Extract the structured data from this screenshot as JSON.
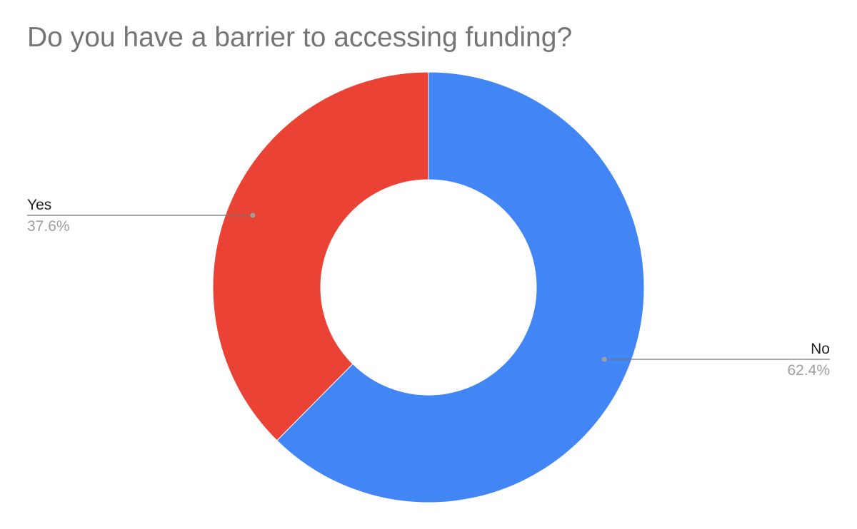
{
  "chart_data": {
    "type": "pie",
    "title": "Do you have a barrier to accessing funding?",
    "donut": true,
    "start_angle": "top, clockwise",
    "slices": [
      {
        "label": "No",
        "value": 62.4,
        "value_label": "62.4%",
        "color": "#4285f4"
      },
      {
        "label": "Yes",
        "value": 37.6,
        "value_label": "37.6%",
        "color": "#ea4335"
      }
    ],
    "legend": "none"
  }
}
